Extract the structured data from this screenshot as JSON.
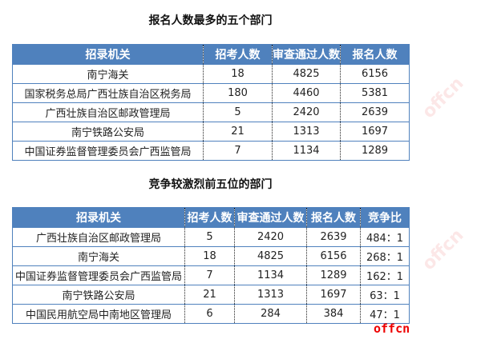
{
  "table1": {
    "title": "报名人数最多的五个部门",
    "headers": [
      "招录机关",
      "招考人数",
      "审查通过人数",
      "报名人数"
    ],
    "rows": [
      [
        "南宁海关",
        "18",
        "4825",
        "6156"
      ],
      [
        "国家税务总局广西壮族自治区税务局",
        "180",
        "4460",
        "5381"
      ],
      [
        "广西壮族自治区邮政管理局",
        "5",
        "2420",
        "2639"
      ],
      [
        "南宁铁路公安局",
        "21",
        "1313",
        "1697"
      ],
      [
        "中国证券监督管理委员会广西监管局",
        "7",
        "1134",
        "1289"
      ]
    ]
  },
  "table2": {
    "title": "竞争较激烈前五位的部门",
    "headers": [
      "招录机关",
      "招考人数",
      "审查通过人数",
      "报名人数",
      "竞争比"
    ],
    "rows": [
      [
        "广西壮族自治区邮政管理局",
        "5",
        "2420",
        "2639",
        "484：1"
      ],
      [
        "南宁海关",
        "18",
        "4825",
        "6156",
        "268：1"
      ],
      [
        "中国证券监督管理委员会广西监管局",
        "7",
        "1134",
        "1289",
        "162：1"
      ],
      [
        "南宁铁路公安局",
        "21",
        "1313",
        "1697",
        "63：1"
      ],
      [
        "中国民用航空局中南地区管理局",
        "6",
        "284",
        "384",
        "47：1"
      ]
    ]
  },
  "logo": "offcn"
}
